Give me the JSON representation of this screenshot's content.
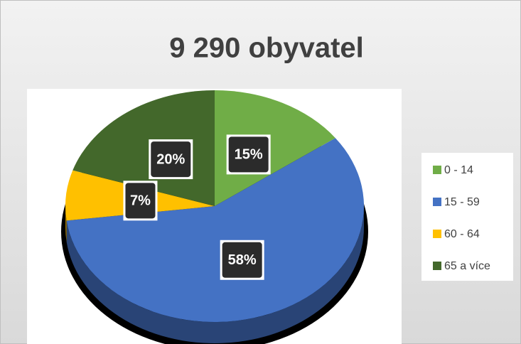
{
  "chart_data": {
    "type": "pie",
    "title": "9 290 obyvatel",
    "categories": [
      "0 - 14",
      "15 - 59",
      "60 - 64",
      "65 a více"
    ],
    "values": [
      15,
      58,
      7,
      20
    ],
    "value_labels": [
      "15%",
      "58%",
      "7%",
      "20%"
    ],
    "colors": [
      "#70ad47",
      "#4472c4",
      "#ffc000",
      "#43682b"
    ],
    "legend": "right"
  }
}
